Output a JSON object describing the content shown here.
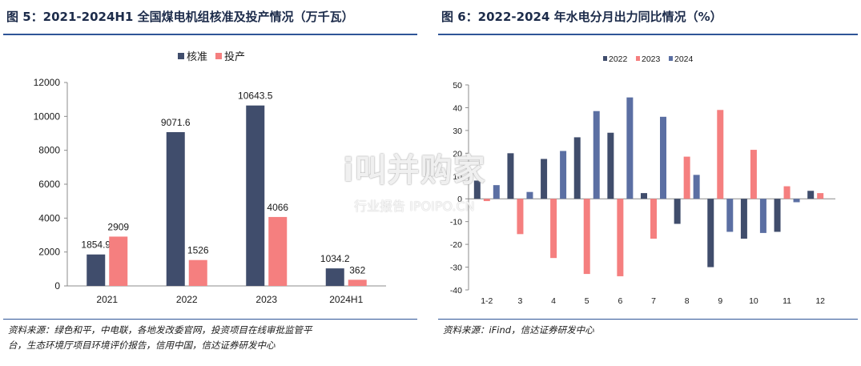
{
  "left_panel": {
    "title": "图 5：2021-2024H1 全国煤电机组核准及投产情况（万千瓦）",
    "source": [
      "资料来源：绿色和平，中电联，各地发改委官网，投资项目在线审批监管平",
      "台，生态环境厅项目环境评价报告，信用中国，信达证券研发中心"
    ]
  },
  "right_panel": {
    "title": "图 6：2022-2024 年水电分月出力同比情况（%）",
    "source": "资料来源：iFind，信达证券研发中心"
  },
  "watermark": {
    "main": "i叫并购家",
    "sub": "行业报告 IPOIPO.CN"
  },
  "chart_data": [
    {
      "type": "bar",
      "categories": [
        "2021",
        "2022",
        "2023",
        "2024H1"
      ],
      "series": [
        {
          "name": "核准",
          "values": [
            1854.9,
            9071.6,
            10643.5,
            1034.2
          ],
          "labels": [
            "1854.9",
            "9071.6",
            "10643.5",
            "1034.2"
          ],
          "color": "#404d6c"
        },
        {
          "name": "投产",
          "values": [
            2909,
            1526,
            4066,
            362
          ],
          "labels": [
            "2909",
            "1526",
            "4066",
            "362"
          ],
          "color": "#f57f7f"
        }
      ],
      "ylim": [
        0,
        12000
      ],
      "yticks": [
        0,
        2000,
        4000,
        6000,
        8000,
        10000,
        12000
      ],
      "legend": "top-center",
      "grid": false
    },
    {
      "type": "bar",
      "categories": [
        "1-2",
        "3",
        "4",
        "5",
        "6",
        "7",
        "8",
        "9",
        "10",
        "11",
        "12"
      ],
      "series": [
        {
          "name": "2022",
          "values": [
            8,
            20,
            17.5,
            27,
            29,
            2.5,
            -11,
            -30,
            -17.5,
            -14.5,
            3.5
          ],
          "color": "#404d6c"
        },
        {
          "name": "2023",
          "values": [
            -1,
            -15.5,
            -26,
            -33,
            -34,
            -17.5,
            18.5,
            39,
            21.5,
            5.5,
            2.5
          ],
          "color": "#f57f7f"
        },
        {
          "name": "2024",
          "values": [
            6,
            3,
            21,
            38.5,
            44.5,
            36,
            10.5,
            -14.5,
            -15,
            -1.5,
            null
          ],
          "color": "#5b6fa3"
        }
      ],
      "ylim": [
        -40,
        50
      ],
      "yticks": [
        -40,
        -30,
        -20,
        -10,
        0,
        10,
        20,
        30,
        40,
        50
      ],
      "legend": "top-center",
      "grid": false
    }
  ]
}
